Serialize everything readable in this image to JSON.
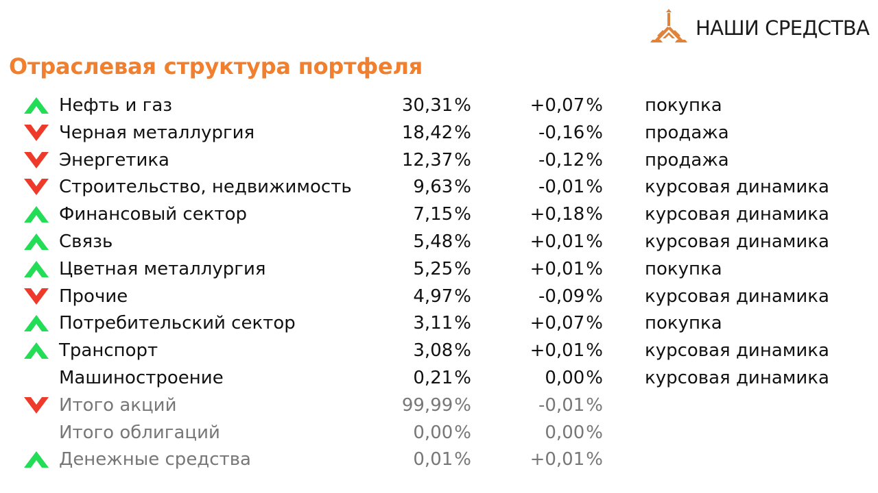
{
  "logo": {
    "text": "НАШИ СРЕДСТВА",
    "icon": "triangle-logo-icon",
    "color": "#e0823a"
  },
  "title": "Отраслевая структура портфеля",
  "colors": {
    "title": "#f07f2f",
    "up": "#22dd55",
    "down": "#ee3a2a",
    "total_text": "#777777"
  },
  "rows": [
    {
      "name": "Нефть и газ",
      "share": "30,31",
      "change": "+0,07",
      "action": "покупка",
      "trend": "up"
    },
    {
      "name": "Черная металлургия",
      "share": "18,42",
      "change": "-0,16",
      "action": "продажа",
      "trend": "down"
    },
    {
      "name": "Энергетика",
      "share": "12,37",
      "change": "-0,12",
      "action": "продажа",
      "trend": "down"
    },
    {
      "name": "Строительство, недвижимость",
      "share": "9,63",
      "change": "-0,01",
      "action": "курсовая динамика",
      "trend": "down"
    },
    {
      "name": "Финансовый сектор",
      "share": "7,15",
      "change": "+0,18",
      "action": "курсовая динамика",
      "trend": "up"
    },
    {
      "name": "Связь",
      "share": "5,48",
      "change": "+0,01",
      "action": "курсовая динамика",
      "trend": "up"
    },
    {
      "name": "Цветная металлургия",
      "share": "5,25",
      "change": "+0,01",
      "action": "покупка",
      "trend": "up"
    },
    {
      "name": "Прочие",
      "share": "4,97",
      "change": "-0,09",
      "action": "курсовая динамика",
      "trend": "down"
    },
    {
      "name": "Потребительский сектор",
      "share": "3,11",
      "change": "+0,07",
      "action": "покупка",
      "trend": "up"
    },
    {
      "name": "Транспорт",
      "share": "3,08",
      "change": "+0,01",
      "action": "курсовая динамика",
      "trend": "up"
    },
    {
      "name": "Машиностроение",
      "share": "0,21",
      "change": "0,00",
      "action": "курсовая динамика",
      "trend": "none"
    }
  ],
  "totals": [
    {
      "name": "Итого акций",
      "share": "99,99",
      "change": "-0,01",
      "trend": "down"
    },
    {
      "name": "Итого облигаций",
      "share": "0,00",
      "change": "0,00",
      "trend": "none"
    },
    {
      "name": "Денежные средства",
      "share": "0,01",
      "change": "+0,01",
      "trend": "up"
    }
  ],
  "percent_sign": "%"
}
